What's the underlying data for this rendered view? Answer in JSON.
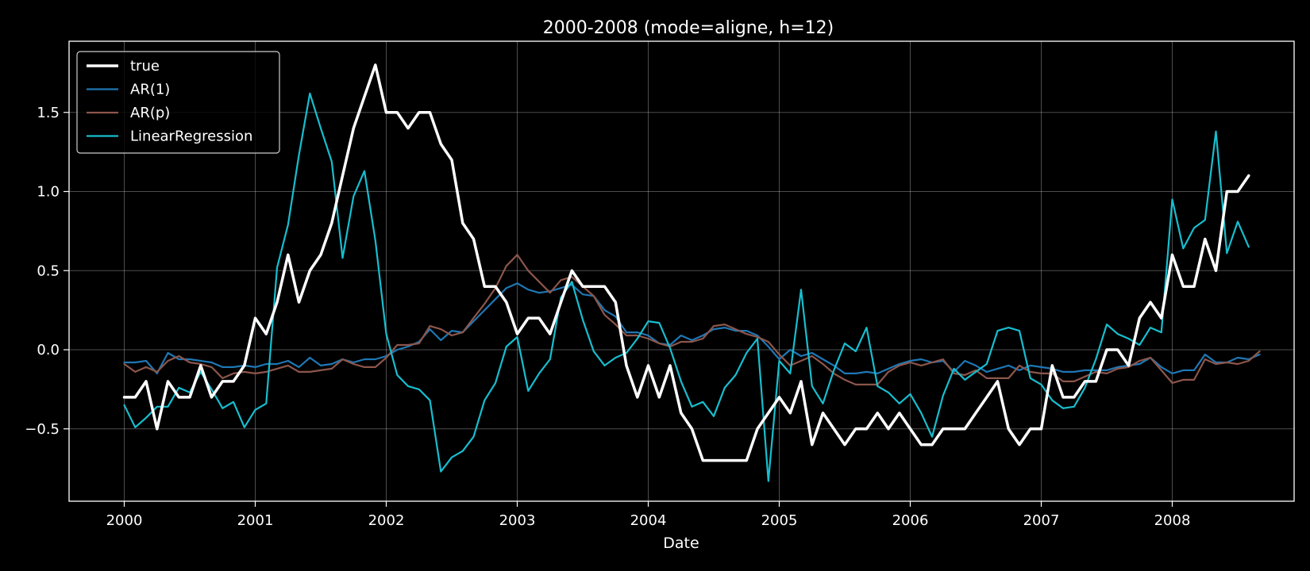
{
  "chart_data": {
    "type": "line",
    "title": "2000-2008 (mode=aligne, h=12)",
    "xlabel": "Date",
    "ylabel": "",
    "x_start": "2000-01",
    "x_end": "2008-07",
    "x_ticks": [
      "2000",
      "2001",
      "2002",
      "2003",
      "2004",
      "2005",
      "2006",
      "2007",
      "2008"
    ],
    "y_ticks": [
      "−0.5",
      "0.0",
      "0.5",
      "1.0",
      "1.5"
    ],
    "ylim": [
      -0.95,
      1.93
    ],
    "grid": true,
    "legend_position": "upper-left",
    "background": "#000000",
    "series": [
      {
        "name": "true",
        "color": "#ffffff",
        "values": [
          -0.3,
          -0.3,
          -0.2,
          -0.5,
          -0.2,
          -0.3,
          -0.3,
          -0.1,
          -0.3,
          -0.2,
          -0.2,
          -0.1,
          0.2,
          0.1,
          0.3,
          0.6,
          0.3,
          0.5,
          0.6,
          0.8,
          1.1,
          1.4,
          1.6,
          1.8,
          1.5,
          1.5,
          1.4,
          1.5,
          1.5,
          1.3,
          1.2,
          0.8,
          0.7,
          0.4,
          0.4,
          0.3,
          0.1,
          0.2,
          0.2,
          0.1,
          0.3,
          0.5,
          0.4,
          0.4,
          0.4,
          0.3,
          -0.1,
          -0.3,
          -0.1,
          -0.3,
          -0.1,
          -0.4,
          -0.5,
          -0.7,
          -0.7,
          -0.7,
          -0.7,
          -0.7,
          -0.5,
          -0.4,
          -0.3,
          -0.4,
          -0.2,
          -0.6,
          -0.4,
          -0.5,
          -0.6,
          -0.5,
          -0.5,
          -0.4,
          -0.5,
          -0.4,
          -0.5,
          -0.6,
          -0.6,
          -0.5,
          -0.5,
          -0.5,
          -0.4,
          -0.3,
          -0.2,
          -0.5,
          -0.6,
          -0.5,
          -0.5,
          -0.1,
          -0.3,
          -0.3,
          -0.2,
          -0.2,
          0.0,
          0.0,
          -0.1,
          0.2,
          0.3,
          0.2,
          0.6,
          0.4,
          0.4,
          0.7,
          0.5,
          1.0,
          1.0,
          1.1
        ]
      },
      {
        "name": "AR(1)",
        "color": "#1f77b4",
        "values": [
          -0.08,
          -0.08,
          -0.07,
          -0.15,
          -0.02,
          -0.06,
          -0.06,
          -0.07,
          -0.08,
          -0.11,
          -0.11,
          -0.1,
          -0.11,
          -0.09,
          -0.09,
          -0.07,
          -0.11,
          -0.05,
          -0.1,
          -0.09,
          -0.06,
          -0.08,
          -0.06,
          -0.06,
          -0.04,
          0.0,
          0.02,
          0.05,
          0.13,
          0.06,
          0.12,
          0.11,
          0.18,
          0.25,
          0.32,
          0.39,
          0.42,
          0.38,
          0.36,
          0.37,
          0.39,
          0.41,
          0.35,
          0.34,
          0.25,
          0.21,
          0.11,
          0.11,
          0.09,
          0.04,
          0.03,
          0.09,
          0.06,
          0.09,
          0.13,
          0.14,
          0.12,
          0.12,
          0.09,
          0.02,
          -0.06,
          0.0,
          -0.04,
          -0.02,
          -0.06,
          -0.1,
          -0.15,
          -0.15,
          -0.14,
          -0.15,
          -0.12,
          -0.09,
          -0.07,
          -0.06,
          -0.08,
          -0.07,
          -0.14,
          -0.07,
          -0.1,
          -0.14,
          -0.12,
          -0.1,
          -0.13,
          -0.1,
          -0.11,
          -0.12,
          -0.14,
          -0.14,
          -0.13,
          -0.13,
          -0.13,
          -0.11,
          -0.1,
          -0.09,
          -0.05,
          -0.11,
          -0.15,
          -0.13,
          -0.13,
          -0.03,
          -0.08,
          -0.08,
          -0.05,
          -0.06,
          -0.03
        ]
      },
      {
        "name": "AR(p)",
        "color": "#8c564b",
        "values": [
          -0.09,
          -0.14,
          -0.11,
          -0.14,
          -0.07,
          -0.04,
          -0.08,
          -0.09,
          -0.11,
          -0.18,
          -0.15,
          -0.14,
          -0.15,
          -0.14,
          -0.12,
          -0.1,
          -0.14,
          -0.14,
          -0.13,
          -0.12,
          -0.06,
          -0.09,
          -0.11,
          -0.11,
          -0.05,
          0.03,
          0.03,
          0.04,
          0.15,
          0.13,
          0.09,
          0.11,
          0.2,
          0.29,
          0.39,
          0.53,
          0.6,
          0.5,
          0.43,
          0.36,
          0.44,
          0.46,
          0.4,
          0.34,
          0.22,
          0.16,
          0.09,
          0.09,
          0.07,
          0.04,
          0.02,
          0.05,
          0.05,
          0.07,
          0.15,
          0.16,
          0.13,
          0.1,
          0.08,
          0.05,
          -0.03,
          -0.1,
          -0.07,
          -0.04,
          -0.09,
          -0.15,
          -0.19,
          -0.22,
          -0.22,
          -0.22,
          -0.14,
          -0.1,
          -0.08,
          -0.1,
          -0.08,
          -0.06,
          -0.15,
          -0.16,
          -0.13,
          -0.18,
          -0.18,
          -0.18,
          -0.1,
          -0.14,
          -0.15,
          -0.15,
          -0.2,
          -0.2,
          -0.17,
          -0.14,
          -0.15,
          -0.12,
          -0.11,
          -0.07,
          -0.05,
          -0.13,
          -0.21,
          -0.19,
          -0.19,
          -0.06,
          -0.09,
          -0.08,
          -0.09,
          -0.07,
          -0.01
        ]
      },
      {
        "name": "LinearRegression",
        "color": "#17becf",
        "values": [
          -0.35,
          -0.49,
          -0.43,
          -0.36,
          -0.36,
          -0.24,
          -0.27,
          -0.14,
          -0.25,
          -0.37,
          -0.33,
          -0.49,
          -0.38,
          -0.34,
          0.52,
          0.79,
          1.23,
          1.62,
          1.4,
          1.19,
          0.58,
          0.97,
          1.13,
          0.69,
          0.1,
          -0.16,
          -0.23,
          -0.25,
          -0.32,
          -0.77,
          -0.68,
          -0.64,
          -0.55,
          -0.32,
          -0.21,
          0.02,
          0.08,
          -0.26,
          -0.15,
          -0.06,
          0.33,
          0.43,
          0.19,
          -0.01,
          -0.1,
          -0.05,
          -0.02,
          0.07,
          0.18,
          0.17,
          0.01,
          -0.2,
          -0.36,
          -0.33,
          -0.42,
          -0.24,
          -0.16,
          -0.02,
          0.07,
          -0.83,
          -0.07,
          -0.15,
          0.38,
          -0.23,
          -0.34,
          -0.13,
          0.04,
          -0.01,
          0.14,
          -0.23,
          -0.27,
          -0.34,
          -0.28,
          -0.4,
          -0.55,
          -0.29,
          -0.12,
          -0.19,
          -0.14,
          -0.09,
          0.12,
          0.14,
          0.12,
          -0.18,
          -0.22,
          -0.32,
          -0.37,
          -0.36,
          -0.24,
          -0.06,
          0.16,
          0.1,
          0.07,
          0.03,
          0.14,
          0.11,
          0.95,
          0.64,
          0.77,
          0.82,
          1.38,
          0.61,
          0.81,
          0.65
        ]
      }
    ]
  }
}
